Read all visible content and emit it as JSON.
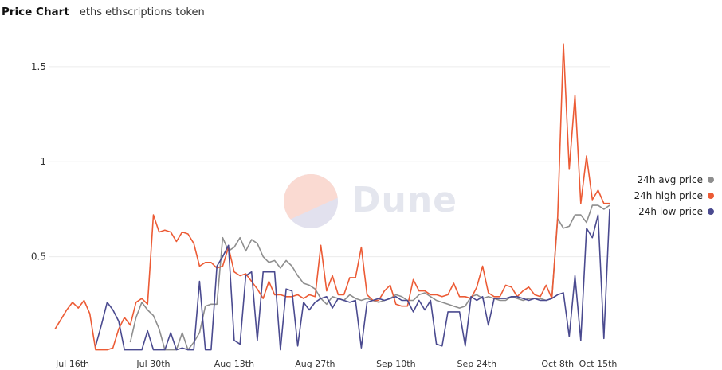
{
  "header": {
    "title": "Price Chart",
    "subtitle": "eths ethscriptions token"
  },
  "watermark": {
    "text": "Dune"
  },
  "legend": [
    {
      "label": "24h avg price",
      "color": "#8e8e8e"
    },
    {
      "label": "24h high price",
      "color": "#ec5b35"
    },
    {
      "label": "24h low price",
      "color": "#4a4a8f"
    }
  ],
  "chart_data": {
    "type": "line",
    "title": "Price Chart",
    "xlabel": "",
    "ylabel": "",
    "ylim": [
      0,
      1.65
    ],
    "yticks": [
      0.5,
      1,
      1.5
    ],
    "ytick_labels": [
      "0.5",
      "1",
      "1.5"
    ],
    "x_start": "2023-07-12",
    "x_ticks": [
      {
        "day": 4,
        "label": "Jul 16th"
      },
      {
        "day": 18,
        "label": "Jul 30th"
      },
      {
        "day": 32,
        "label": "Aug 13th"
      },
      {
        "day": 46,
        "label": "Aug 27th"
      },
      {
        "day": 60,
        "label": "Sep 10th"
      },
      {
        "day": 74,
        "label": "Sep 24th"
      },
      {
        "day": 88,
        "label": "Oct 8th"
      },
      {
        "day": 95,
        "label": "Oct 15th"
      }
    ],
    "grid": true,
    "legend_position": "right",
    "series": [
      {
        "name": "24h avg price",
        "color": "#8e8e8e",
        "values": [
          0.05,
          0.18,
          0.26,
          0.22,
          0.19,
          0.12,
          0.01,
          0.01,
          0.01,
          0.1,
          0.01,
          0.05,
          0.1,
          0.24,
          0.25,
          0.25,
          0.6,
          0.53,
          0.55,
          0.6,
          0.53,
          0.59,
          0.57,
          0.5,
          0.47,
          0.48,
          0.44,
          0.48,
          0.45,
          0.4,
          0.36,
          0.35,
          0.33,
          0.28,
          0.25,
          0.29,
          0.28,
          0.27,
          0.3,
          0.28,
          0.27,
          0.28,
          0.27,
          0.26,
          0.27,
          0.28,
          0.3,
          0.29,
          0.27,
          0.27,
          0.3,
          0.31,
          0.29,
          0.27,
          0.26,
          0.25,
          0.24,
          0.23,
          0.24,
          0.29,
          0.3,
          0.28,
          0.29,
          0.28,
          0.27,
          0.27,
          0.29,
          0.28,
          0.27,
          0.28,
          0.28,
          0.28,
          0.27,
          0.28,
          0.7,
          0.65,
          0.66,
          0.72,
          0.72,
          0.68,
          0.77,
          0.77,
          0.75,
          0.77
        ]
      },
      {
        "name": "24h high price",
        "color": "#ec5b35",
        "values": [
          0.12,
          0.17,
          0.22,
          0.26,
          0.23,
          0.27,
          0.2,
          0.01,
          0.01,
          0.01,
          0.02,
          0.12,
          0.18,
          0.14,
          0.26,
          0.28,
          0.25,
          0.72,
          0.63,
          0.64,
          0.63,
          0.58,
          0.63,
          0.62,
          0.57,
          0.45,
          0.47,
          0.47,
          0.44,
          0.45,
          0.55,
          0.42,
          0.4,
          0.41,
          0.37,
          0.33,
          0.28,
          0.37,
          0.3,
          0.3,
          0.29,
          0.29,
          0.3,
          0.28,
          0.3,
          0.29,
          0.56,
          0.32,
          0.4,
          0.3,
          0.3,
          0.39,
          0.39,
          0.55,
          0.3,
          0.27,
          0.27,
          0.32,
          0.35,
          0.25,
          0.24,
          0.24,
          0.38,
          0.32,
          0.32,
          0.3,
          0.3,
          0.29,
          0.3,
          0.36,
          0.29,
          0.29,
          0.28,
          0.34,
          0.45,
          0.31,
          0.29,
          0.29,
          0.35,
          0.34,
          0.29,
          0.32,
          0.34,
          0.3,
          0.29,
          0.35,
          0.28,
          0.71,
          1.62,
          0.96,
          1.35,
          0.78,
          1.03,
          0.8,
          0.85,
          0.78,
          0.78
        ]
      },
      {
        "name": "24h low price",
        "color": "#4a4a8f",
        "values": [
          0.03,
          0.14,
          0.26,
          0.22,
          0.16,
          0.01,
          0.01,
          0.01,
          0.01,
          0.11,
          0.01,
          0.01,
          0.01,
          0.1,
          0.01,
          0.02,
          0.01,
          0.01,
          0.37,
          0.01,
          0.01,
          0.45,
          0.5,
          0.56,
          0.06,
          0.04,
          0.4,
          0.42,
          0.06,
          0.42,
          0.42,
          0.42,
          0.01,
          0.33,
          0.32,
          0.03,
          0.26,
          0.22,
          0.26,
          0.28,
          0.29,
          0.23,
          0.28,
          0.27,
          0.26,
          0.27,
          0.02,
          0.26,
          0.27,
          0.28,
          0.27,
          0.28,
          0.29,
          0.27,
          0.27,
          0.21,
          0.27,
          0.22,
          0.27,
          0.04,
          0.03,
          0.21,
          0.21,
          0.21,
          0.03,
          0.29,
          0.27,
          0.29,
          0.14,
          0.28,
          0.28,
          0.28,
          0.29,
          0.29,
          0.28,
          0.27,
          0.28,
          0.27,
          0.27,
          0.28,
          0.3,
          0.31,
          0.08,
          0.4,
          0.06,
          0.65,
          0.6,
          0.72,
          0.07,
          0.75
        ]
      }
    ]
  }
}
